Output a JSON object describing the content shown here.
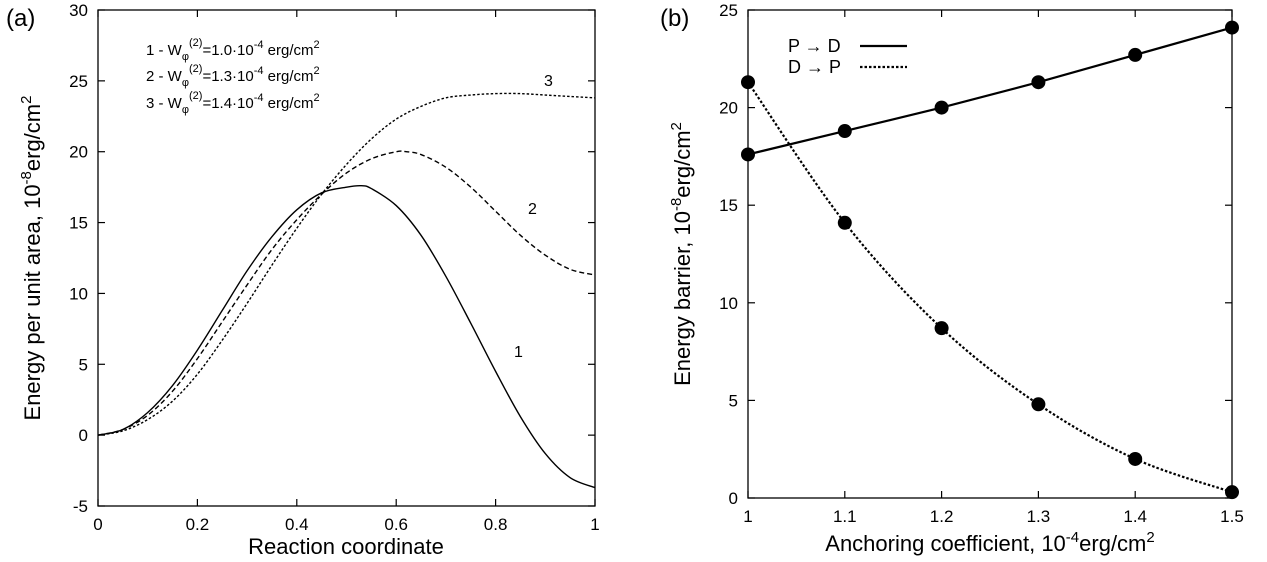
{
  "colors": {
    "ink": "#000000",
    "background": "#ffffff"
  },
  "chart_data": [
    {
      "type": "line",
      "panel_label": "(a)",
      "xlabel": "Reaction coordinate",
      "ylabel_html": "Energy per unit area, 10^-8erg/cm^2",
      "ylabel": {
        "pre": "Energy per unit area, 10",
        "exp1": "-8",
        "mid": "erg/cm",
        "exp2": "2"
      },
      "xlim": [
        0,
        1
      ],
      "ylim": [
        -5,
        30
      ],
      "x_ticks": [
        0,
        0.2,
        0.4,
        0.6,
        0.8,
        1
      ],
      "x_tick_labels": [
        "0",
        "0.2",
        "0.4",
        "0.6",
        "0.8",
        "1"
      ],
      "y_ticks": [
        -5,
        0,
        5,
        10,
        15,
        20,
        25,
        30
      ],
      "y_tick_labels": [
        "-5",
        "0",
        "5",
        "10",
        "15",
        "20",
        "25",
        "30"
      ],
      "grid": false,
      "legend": [
        {
          "num": "1 - W",
          "sub": "φ",
          "sup": "(2)",
          "value": "=1.0·10",
          "exp": "-4",
          "unit": " erg/cm",
          "unit_exp": "2"
        },
        {
          "num": "2 - W",
          "sub": "φ",
          "sup": "(2)",
          "value": "=1.3·10",
          "exp": "-4",
          "unit": " erg/cm",
          "unit_exp": "2"
        },
        {
          "num": "3 - W",
          "sub": "φ",
          "sup": "(2)",
          "value": "=1.4·10",
          "exp": "-4",
          "unit": " erg/cm",
          "unit_exp": "2"
        }
      ],
      "legend_placement": "top-left",
      "series": [
        {
          "curve_label": "1",
          "dash": "solid",
          "x": [
            0,
            0.05,
            0.1,
            0.15,
            0.2,
            0.25,
            0.3,
            0.35,
            0.4,
            0.45,
            0.5,
            0.53,
            0.55,
            0.6,
            0.65,
            0.7,
            0.75,
            0.8,
            0.85,
            0.9,
            0.95,
            1.0
          ],
          "y": [
            0,
            0.4,
            1.6,
            3.5,
            6.0,
            8.8,
            11.6,
            14.0,
            15.9,
            17.1,
            17.5,
            17.6,
            17.4,
            16.2,
            14.1,
            11.2,
            7.9,
            4.5,
            1.3,
            -1.3,
            -3.0,
            -3.7
          ]
        },
        {
          "curve_label": "2",
          "dash": "dashed",
          "x": [
            0,
            0.05,
            0.1,
            0.15,
            0.2,
            0.25,
            0.3,
            0.35,
            0.4,
            0.45,
            0.5,
            0.55,
            0.6,
            0.62,
            0.65,
            0.7,
            0.75,
            0.8,
            0.85,
            0.9,
            0.95,
            1.0
          ],
          "y": [
            0,
            0.4,
            1.4,
            3.1,
            5.4,
            8.0,
            10.6,
            13.1,
            15.2,
            17.0,
            18.5,
            19.5,
            20.0,
            20.0,
            19.8,
            18.9,
            17.5,
            15.8,
            14.1,
            12.7,
            11.7,
            11.3
          ]
        },
        {
          "curve_label": "3",
          "dash": "dotted",
          "x": [
            0,
            0.05,
            0.1,
            0.15,
            0.2,
            0.25,
            0.3,
            0.35,
            0.4,
            0.45,
            0.5,
            0.55,
            0.6,
            0.65,
            0.7,
            0.75,
            0.8,
            0.85,
            0.9,
            0.95,
            1.0
          ],
          "y": [
            0,
            0.3,
            1.1,
            2.4,
            4.3,
            6.7,
            9.3,
            12.0,
            14.6,
            17.0,
            19.1,
            20.9,
            22.3,
            23.2,
            23.8,
            24.0,
            24.1,
            24.1,
            24.0,
            23.9,
            23.8
          ]
        }
      ]
    },
    {
      "type": "line",
      "panel_label": "(b)",
      "xlabel": {
        "pre": "Anchoring coefficient, 10",
        "exp1": "-4",
        "mid": "erg/cm",
        "exp2": "2"
      },
      "ylabel": {
        "pre": "Energy barrier, 10",
        "exp1": "-8",
        "mid": "erg/cm",
        "exp2": "2"
      },
      "xlim": [
        1,
        1.5
      ],
      "ylim": [
        0,
        25
      ],
      "x_ticks": [
        1,
        1.1,
        1.2,
        1.3,
        1.4,
        1.5
      ],
      "x_tick_labels": [
        "1",
        "1.1",
        "1.2",
        "1.3",
        "1.4",
        "1.5"
      ],
      "y_ticks": [
        0,
        5,
        10,
        15,
        20,
        25
      ],
      "y_tick_labels": [
        "0",
        "5",
        "10",
        "15",
        "20",
        "25"
      ],
      "grid": false,
      "legend_placement": "top-left",
      "series": [
        {
          "name": "P → D",
          "dash": "solid",
          "x": [
            1.0,
            1.1,
            1.2,
            1.3,
            1.4,
            1.5
          ],
          "y": [
            17.6,
            18.8,
            20.0,
            21.3,
            22.7,
            24.1
          ]
        },
        {
          "name": "D → P",
          "dash": "dotted",
          "x": [
            1.0,
            1.1,
            1.2,
            1.3,
            1.4,
            1.5
          ],
          "y": [
            21.3,
            14.1,
            8.7,
            4.8,
            2.0,
            0.3
          ]
        }
      ]
    }
  ]
}
